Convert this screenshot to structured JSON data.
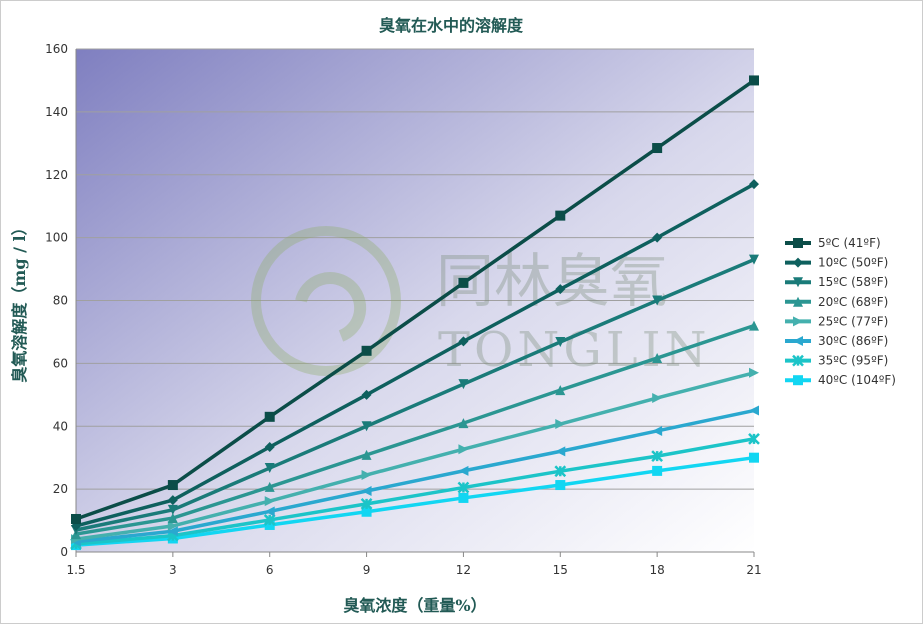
{
  "chart_data": {
    "type": "line",
    "title": "臭氧在水中的溶解度",
    "xlabel": "臭氧浓度（重量%）",
    "ylabel": "臭氧溶解度（mg / l）",
    "categories": [
      "1.5",
      "3",
      "6",
      "9",
      "12",
      "15",
      "18",
      "21"
    ],
    "ylim": [
      0,
      160
    ],
    "yticks": [
      0,
      20,
      40,
      60,
      80,
      100,
      120,
      140,
      160
    ],
    "grid": true,
    "legend_position": "right",
    "series": [
      {
        "name": "5ºC (41ºF)",
        "color": "#0b4d48",
        "marker": "square",
        "values": [
          10.5,
          21.3,
          43,
          64,
          85.6,
          107,
          128.5,
          150
        ]
      },
      {
        "name": "10ºC (50ºF)",
        "color": "#0e605e",
        "marker": "diamond",
        "values": [
          8.3,
          16.5,
          33.4,
          50,
          67,
          83.6,
          100,
          117
        ]
      },
      {
        "name": "15ºC (58ºF)",
        "color": "#1a7b79",
        "marker": "triangle-down",
        "values": [
          7,
          13.4,
          26.7,
          40,
          53.4,
          66.8,
          80,
          93
        ]
      },
      {
        "name": "20ºC (68ºF)",
        "color": "#2b9692",
        "marker": "triangle-up",
        "values": [
          5.7,
          10.8,
          20.7,
          30.9,
          41,
          51.5,
          61.7,
          72
        ]
      },
      {
        "name": "25ºC (77ºF)",
        "color": "#44b0ae",
        "marker": "triangle-right",
        "values": [
          4.1,
          8.3,
          16.2,
          24.5,
          32.7,
          40.7,
          49,
          57
        ]
      },
      {
        "name": "30ºC (86ºF)",
        "color": "#2aa8cf",
        "marker": "triangle-left",
        "values": [
          3.3,
          6.6,
          12.9,
          19.4,
          25.8,
          32,
          38.5,
          45
        ]
      },
      {
        "name": "35ºC (95ºF)",
        "color": "#1cc4c8",
        "marker": "star",
        "values": [
          2.6,
          5.2,
          10.2,
          15.3,
          20.5,
          25.7,
          30.5,
          36
        ]
      },
      {
        "name": "40ºC (104ºF)",
        "color": "#12d6f2",
        "marker": "square",
        "values": [
          2.2,
          4.3,
          8.6,
          12.8,
          17.2,
          21.3,
          25.8,
          30
        ]
      }
    ]
  },
  "watermark": {
    "cn": "同林臭氧",
    "en": "TONGLIN"
  }
}
